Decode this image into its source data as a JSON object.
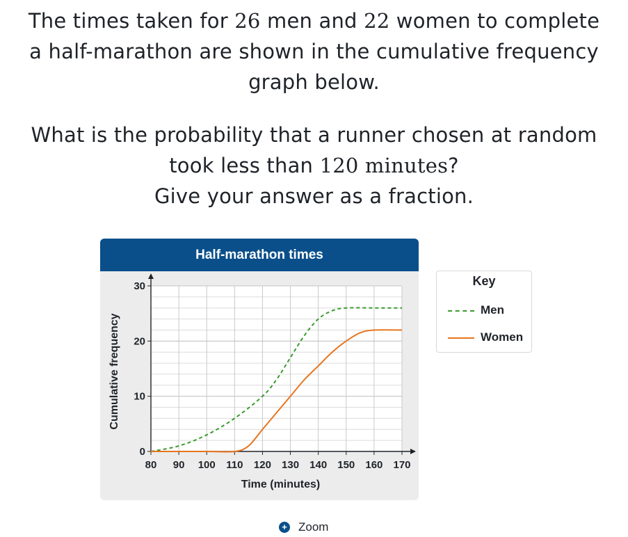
{
  "question": {
    "line1_pre": "The times taken for ",
    "men_count": "26",
    "line1_mid": " men and ",
    "women_count": "22",
    "line1_post": " women to complete",
    "line2": "a half-marathon are shown in the cumulative frequency",
    "line3": "graph below.",
    "line4": "What is the probability that a runner chosen at random",
    "line5_pre": "took less than ",
    "threshold": "120 minutes",
    "line5_post": "?",
    "line6": "Give your answer as a fraction."
  },
  "key": {
    "title": "Key",
    "men": "Men",
    "women": "Women"
  },
  "zoom": {
    "label": "Zoom"
  },
  "colors": {
    "header": "#0a4f8a",
    "men": "#3a9a2e",
    "women": "#e8741e"
  },
  "chart_data": {
    "type": "line",
    "title": "Half-marathon times",
    "xlabel": "Time (minutes)",
    "ylabel": "Cumulative frequency",
    "xlim": [
      80,
      170
    ],
    "ylim": [
      0,
      30
    ],
    "x_ticks": [
      80,
      90,
      100,
      110,
      120,
      130,
      140,
      150,
      160,
      170
    ],
    "y_ticks": [
      0,
      10,
      20,
      30
    ],
    "grid": true,
    "legend": "right",
    "series": [
      {
        "name": "Men",
        "style": "dashed",
        "color": "#3a9a2e",
        "points": [
          [
            80,
            0
          ],
          [
            90,
            1
          ],
          [
            100,
            3
          ],
          [
            110,
            6
          ],
          [
            120,
            10
          ],
          [
            125,
            13
          ],
          [
            130,
            17
          ],
          [
            135,
            21
          ],
          [
            140,
            24
          ],
          [
            145,
            25.5
          ],
          [
            150,
            26
          ],
          [
            160,
            26
          ],
          [
            170,
            26
          ]
        ]
      },
      {
        "name": "Women",
        "style": "solid",
        "color": "#e8741e",
        "points": [
          [
            80,
            0
          ],
          [
            100,
            0
          ],
          [
            110,
            0
          ],
          [
            115,
            1
          ],
          [
            120,
            4
          ],
          [
            125,
            7
          ],
          [
            130,
            10
          ],
          [
            135,
            13
          ],
          [
            140,
            15.5
          ],
          [
            145,
            18
          ],
          [
            150,
            20
          ],
          [
            155,
            21.5
          ],
          [
            160,
            22
          ],
          [
            170,
            22
          ]
        ]
      }
    ]
  }
}
